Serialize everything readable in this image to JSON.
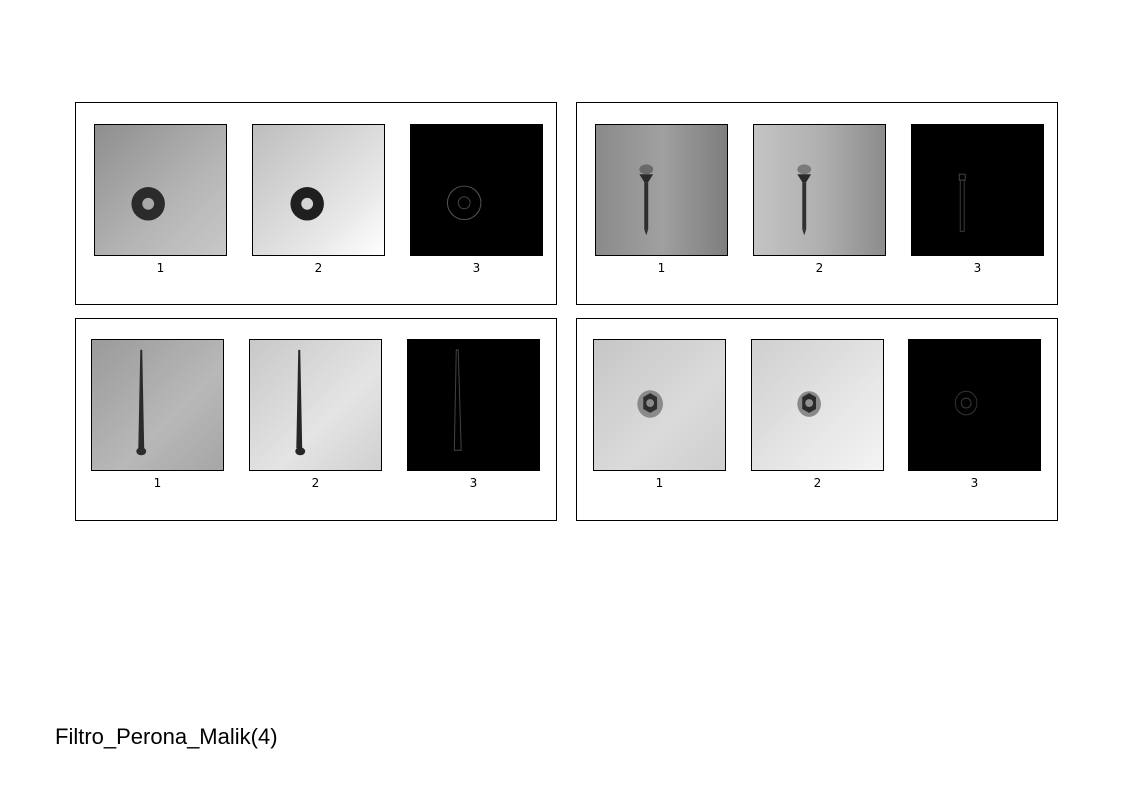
{
  "panels": [
    {
      "object": "washer",
      "labels": [
        "1",
        "2",
        "3"
      ]
    },
    {
      "object": "screw",
      "labels": [
        "1",
        "2",
        "3"
      ]
    },
    {
      "object": "nail",
      "labels": [
        "1",
        "2",
        "3"
      ]
    },
    {
      "object": "nut",
      "labels": [
        "1",
        "2",
        "3"
      ]
    }
  ],
  "caption": "Filtro_Perona_Malik(4)"
}
